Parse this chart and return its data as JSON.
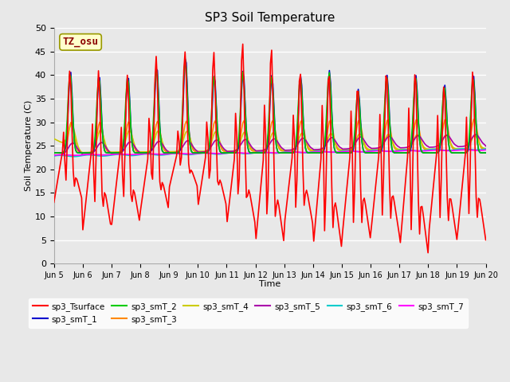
{
  "title": "SP3 Soil Temperature",
  "xlabel": "Time",
  "ylabel": "Soil Temperature (C)",
  "ylim": [
    0,
    50
  ],
  "background_color": "#e8e8e8",
  "annotation_text": "TZ_osu",
  "annotation_color": "#8b0000",
  "annotation_bg": "#ffffcc",
  "x_tick_labels": [
    "Jun 5",
    "Jun 6",
    "Jun 7",
    "Jun 8",
    "Jun 9",
    "Jun 10",
    "Jun 11",
    "Jun 12",
    "Jun 13",
    "Jun 14",
    "Jun 15",
    "Jun 16",
    "Jun 17",
    "Jun 18",
    "Jun 19",
    "Jun 20"
  ],
  "series_colors": {
    "sp3_Tsurface": "#ff0000",
    "sp3_smT_1": "#0000cc",
    "sp3_smT_2": "#00cc00",
    "sp3_smT_3": "#ff8800",
    "sp3_smT_4": "#cccc00",
    "sp3_smT_5": "#aa00aa",
    "sp3_smT_6": "#00cccc",
    "sp3_smT_7": "#ff00ff"
  },
  "legend_ncol_row1": 6,
  "legend_ncol_row2": 2
}
